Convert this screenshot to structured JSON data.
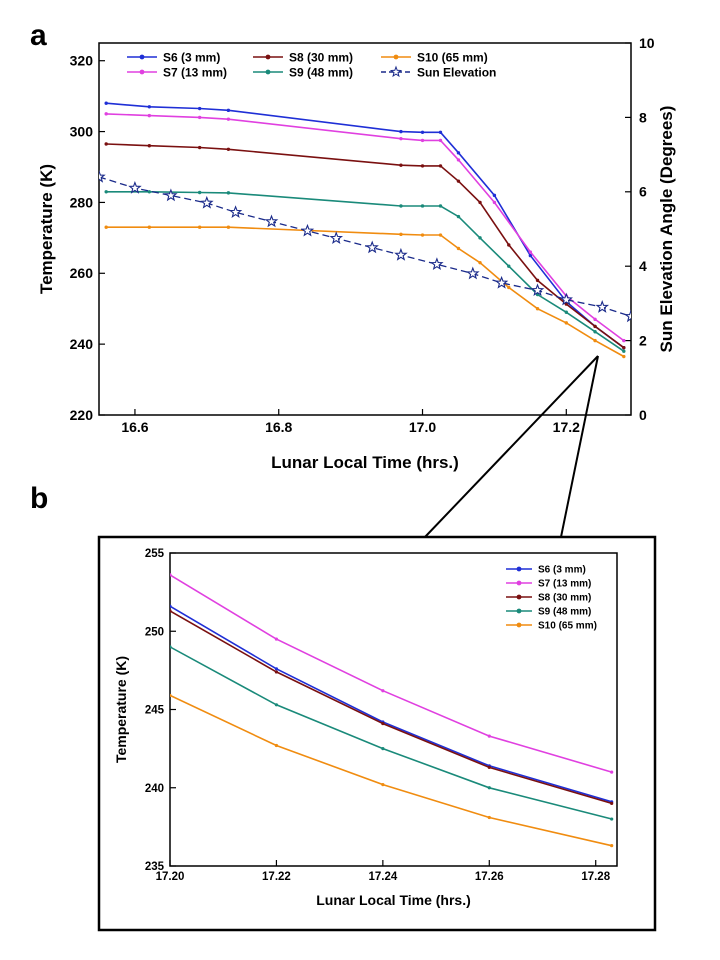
{
  "panel_labels": {
    "a": "a",
    "b": "b"
  },
  "chart_data": [
    {
      "type": "line",
      "xlabel": "Lunar Local Time (hrs.)",
      "ylabel": "Temperature (K)",
      "y2label": "Sun Elevation Angle (Degrees)",
      "xlim": [
        16.55,
        17.29
      ],
      "ylim": [
        220,
        325
      ],
      "y2lim": [
        0,
        10
      ],
      "xticks": [
        16.6,
        16.8,
        17.0,
        17.2
      ],
      "xtick_labels": [
        "16.6",
        "16.8",
        "17.0",
        "17.2"
      ],
      "yticks": [
        220,
        240,
        260,
        280,
        300,
        320
      ],
      "ytick_labels": [
        "220",
        "240",
        "260",
        "280",
        "300",
        "320"
      ],
      "y2ticks": [
        0,
        2,
        4,
        6,
        8,
        10
      ],
      "y2tick_labels": [
        "0",
        "2",
        "4",
        "6",
        "8",
        "10"
      ],
      "grid": false,
      "legend_position": "top",
      "series": [
        {
          "name": "S6 (3 mm)",
          "color": "#1f2fd6",
          "axis": "left",
          "marker": "dot",
          "x": [
            16.56,
            16.62,
            16.69,
            16.73,
            16.97,
            17.0,
            17.025,
            17.05,
            17.1,
            17.15,
            17.2,
            17.24,
            17.28
          ],
          "y": [
            308,
            307,
            306.5,
            306,
            300,
            299.8,
            299.8,
            294,
            282,
            265,
            252,
            245,
            239
          ]
        },
        {
          "name": "S7 (13 mm)",
          "color": "#e040e0",
          "axis": "left",
          "marker": "dot",
          "x": [
            16.56,
            16.62,
            16.69,
            16.73,
            16.97,
            17.0,
            17.025,
            17.05,
            17.1,
            17.15,
            17.2,
            17.24,
            17.28
          ],
          "y": [
            305,
            304.5,
            304,
            303.5,
            298,
            297.5,
            297.5,
            292,
            280,
            266,
            253.6,
            247,
            241
          ]
        },
        {
          "name": "S8 (30 mm)",
          "color": "#7a1010",
          "axis": "left",
          "marker": "dot",
          "x": [
            16.56,
            16.62,
            16.69,
            16.73,
            16.97,
            17.0,
            17.025,
            17.05,
            17.08,
            17.12,
            17.16,
            17.2,
            17.24,
            17.28
          ],
          "y": [
            296.5,
            296,
            295.5,
            295,
            290.5,
            290.3,
            290.3,
            286,
            280,
            268,
            258,
            251.3,
            245,
            239
          ]
        },
        {
          "name": "S9 (48 mm)",
          "color": "#1a8a7a",
          "axis": "left",
          "marker": "dot",
          "x": [
            16.56,
            16.62,
            16.69,
            16.73,
            16.97,
            17.0,
            17.025,
            17.05,
            17.08,
            17.12,
            17.16,
            17.2,
            17.24,
            17.28
          ],
          "y": [
            283,
            283,
            282.8,
            282.7,
            279,
            279,
            279,
            276,
            270,
            262,
            254,
            249,
            243.5,
            238
          ]
        },
        {
          "name": "S10 (65 mm)",
          "color": "#f08c10",
          "axis": "left",
          "marker": "dot",
          "x": [
            16.56,
            16.62,
            16.69,
            16.73,
            16.97,
            17.0,
            17.025,
            17.05,
            17.08,
            17.12,
            17.16,
            17.2,
            17.24,
            17.28
          ],
          "y": [
            273,
            273,
            273,
            273,
            271,
            270.8,
            270.8,
            267,
            263,
            256,
            250,
            246,
            241,
            236.5
          ]
        },
        {
          "name": "Sun Elevation",
          "color": "#1a2a8a",
          "axis": "right",
          "marker": "star",
          "dashed": true,
          "x": [
            16.55,
            16.6,
            16.65,
            16.7,
            16.74,
            16.79,
            16.84,
            16.88,
            16.93,
            16.97,
            17.02,
            17.07,
            17.11,
            17.16,
            17.2,
            17.25,
            17.29
          ],
          "y": [
            6.4,
            6.1,
            5.9,
            5.7,
            5.45,
            5.2,
            4.95,
            4.75,
            4.5,
            4.3,
            4.05,
            3.8,
            3.55,
            3.35,
            3.1,
            2.9,
            2.65
          ]
        }
      ]
    },
    {
      "type": "line",
      "xlabel": "Lunar Local Time (hrs.)",
      "ylabel": "Temperature (K)",
      "xlim": [
        17.2,
        17.284
      ],
      "ylim": [
        235,
        255
      ],
      "xticks": [
        17.2,
        17.22,
        17.24,
        17.26,
        17.28
      ],
      "xtick_labels": [
        "17.20",
        "17.22",
        "17.24",
        "17.26",
        "17.28"
      ],
      "yticks": [
        235,
        240,
        245,
        250,
        255
      ],
      "ytick_labels": [
        "235",
        "240",
        "245",
        "250",
        "255"
      ],
      "grid": false,
      "legend_position": "top-right",
      "series": [
        {
          "name": "S6 (3 mm)",
          "color": "#1f2fd6",
          "x": [
            17.2,
            17.22,
            17.24,
            17.26,
            17.283
          ],
          "y": [
            251.6,
            247.6,
            244.2,
            241.4,
            239.1
          ]
        },
        {
          "name": "S7 (13 mm)",
          "color": "#e040e0",
          "x": [
            17.2,
            17.22,
            17.24,
            17.26,
            17.283
          ],
          "y": [
            253.6,
            249.5,
            246.2,
            243.3,
            241.0
          ]
        },
        {
          "name": "S8 (30 mm)",
          "color": "#7a1010",
          "x": [
            17.2,
            17.22,
            17.24,
            17.26,
            17.283
          ],
          "y": [
            251.3,
            247.4,
            244.1,
            241.3,
            239.0
          ]
        },
        {
          "name": "S9 (48 mm)",
          "color": "#1a8a7a",
          "x": [
            17.2,
            17.22,
            17.24,
            17.26,
            17.283
          ],
          "y": [
            249.0,
            245.3,
            242.5,
            240.0,
            238.0
          ]
        },
        {
          "name": "S10 (65 mm)",
          "color": "#f08c10",
          "x": [
            17.2,
            17.22,
            17.24,
            17.26,
            17.283
          ],
          "y": [
            245.9,
            242.7,
            240.2,
            238.1,
            236.3
          ]
        }
      ]
    }
  ]
}
